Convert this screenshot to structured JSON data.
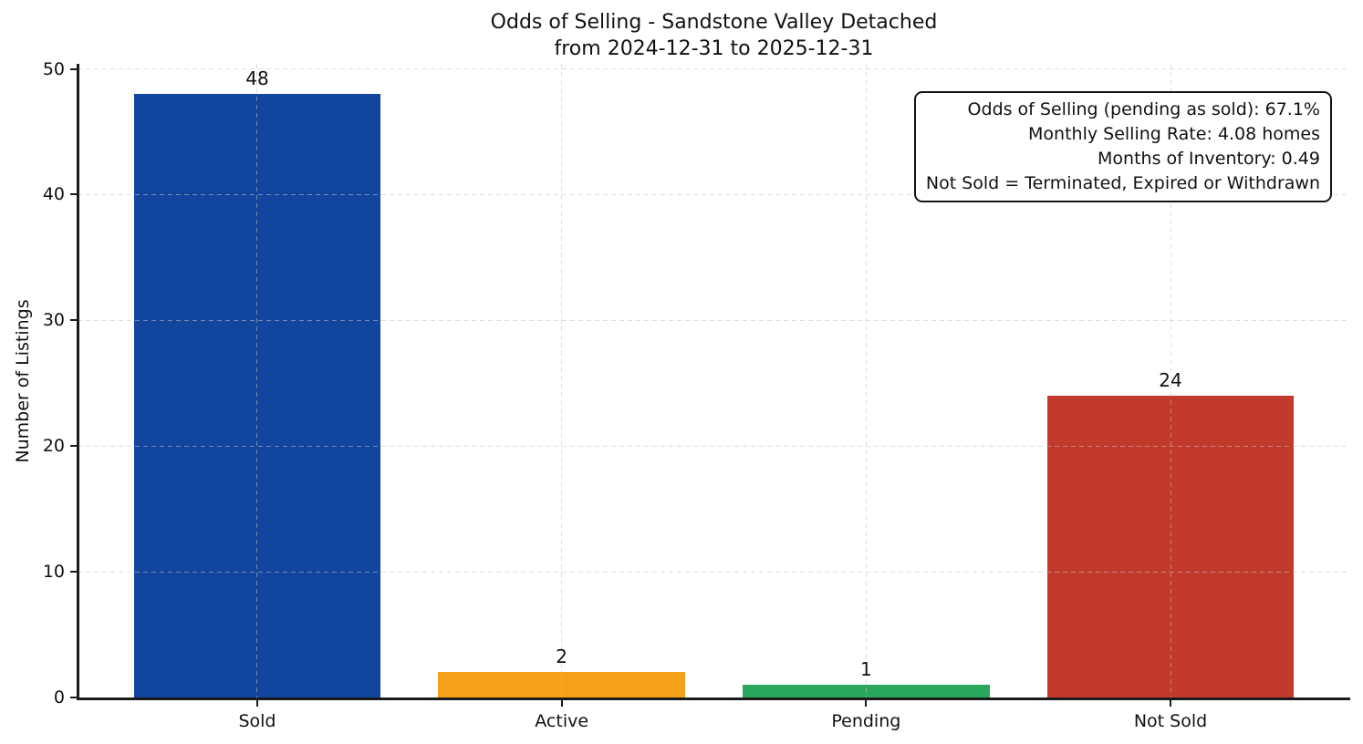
{
  "chart": {
    "title_line1": "Odds of Selling - Sandstone Valley Detached",
    "title_line2": "from 2024-12-31 to 2025-12-31"
  },
  "chart_data": {
    "type": "bar",
    "title": "Odds of Selling - Sandstone Valley Detached\nfrom 2024-12-31 to 2025-12-31",
    "categories": [
      "Sold",
      "Active",
      "Pending",
      "Not Sold"
    ],
    "values": [
      48,
      2,
      1,
      24
    ],
    "bar_colors": [
      "#11459E",
      "#F5A21A",
      "#28A75D",
      "#C13A2B"
    ],
    "xlabel": "",
    "ylabel": "Number of Listings",
    "yticks": [
      0,
      10,
      20,
      30,
      40,
      50
    ],
    "ylim": [
      0,
      50.4
    ],
    "grid": {
      "style": "dashed",
      "axes": "both",
      "color": "#d9d9d9",
      "over_bars": true
    },
    "legend": "none",
    "value_labels": [
      "48",
      "2",
      "1",
      "24"
    ]
  },
  "annotation": {
    "lines": [
      "Odds of Selling (pending as sold): 67.1%",
      "Monthly Selling Rate: 4.08 homes",
      "Months of Inventory: 0.49",
      "Not Sold = Terminated, Expired or Withdrawn"
    ]
  },
  "colors": {
    "axis": "#1a1a1a",
    "text": "#111111",
    "background": "#ffffff"
  }
}
